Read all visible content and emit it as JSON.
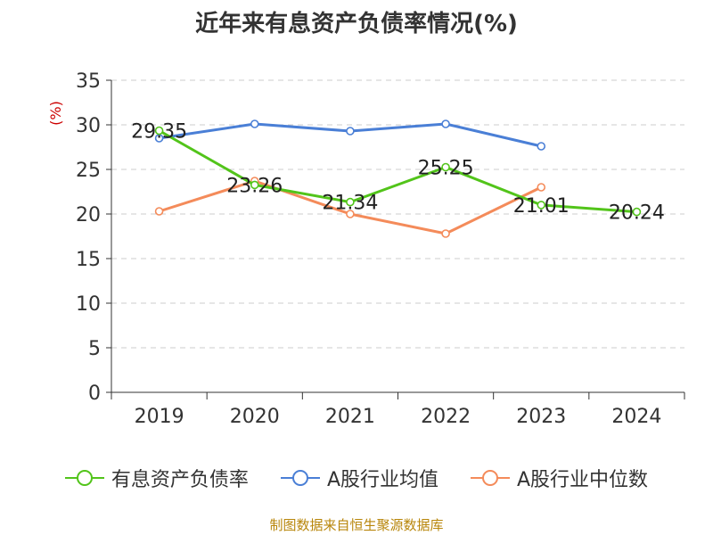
{
  "page": {
    "title": "近年来有息资产负债率情况(%)",
    "source": "制图数据来自恒生聚源数据库"
  },
  "chart_data": {
    "type": "line",
    "title": "近年来有息资产负债率情况(%)",
    "ylabel": "(%)",
    "xlabel": "",
    "categories": [
      "2019",
      "2020",
      "2021",
      "2022",
      "2023",
      "2024"
    ],
    "ylim": [
      0,
      35
    ],
    "yticks": [
      0,
      5,
      10,
      15,
      20,
      25,
      30,
      35
    ],
    "grid": true,
    "legend_position": "bottom",
    "series": [
      {
        "name": "有息资产负债率",
        "color": "#52c41a",
        "values": [
          29.35,
          23.26,
          21.34,
          25.25,
          21.01,
          20.24
        ],
        "labels": [
          "29.35",
          "23.26",
          "21.34",
          "25.25",
          "21.01",
          "20.24"
        ]
      },
      {
        "name": "A股行业均值",
        "color": "#4a7fd6",
        "values": [
          28.5,
          30.1,
          29.3,
          30.1,
          27.6,
          null
        ]
      },
      {
        "name": "A股行业中位数",
        "color": "#f48b5a",
        "values": [
          20.3,
          23.7,
          20.0,
          17.8,
          23.0,
          null
        ]
      }
    ]
  }
}
